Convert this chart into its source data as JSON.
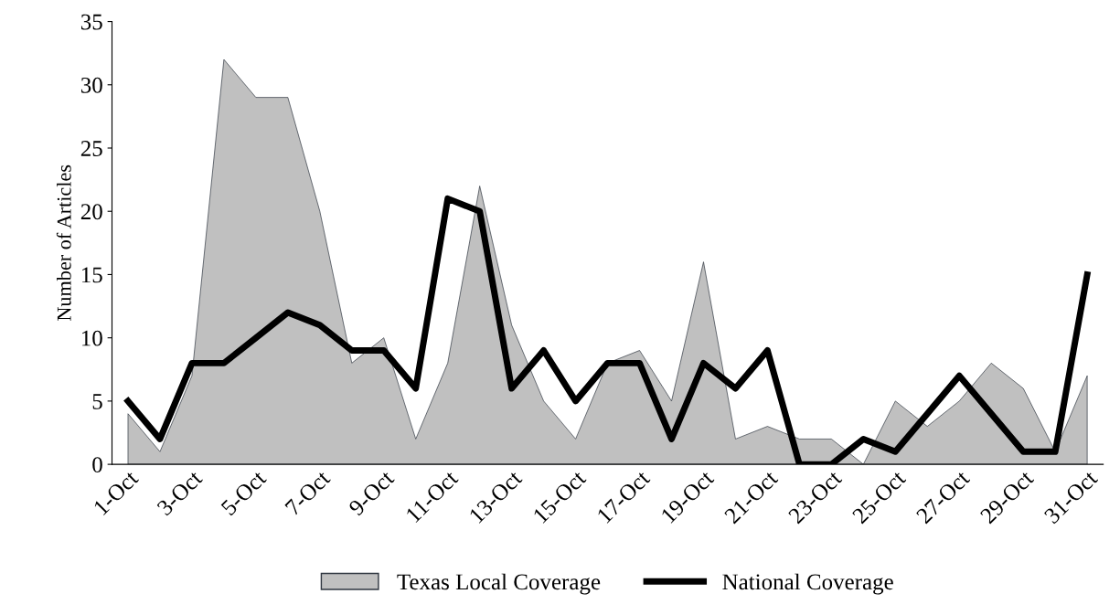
{
  "chart_data": {
    "type": "area",
    "ylabel": "Number of Articles",
    "categories": [
      "1-Oct",
      null,
      "3-Oct",
      null,
      "5-Oct",
      null,
      "7-Oct",
      null,
      "9-Oct",
      null,
      "11-Oct",
      null,
      "13-Oct",
      null,
      "15-Oct",
      null,
      "17-Oct",
      null,
      "19-Oct",
      null,
      "21-Oct",
      null,
      "23-Oct",
      null,
      "25-Oct",
      null,
      "27-Oct",
      null,
      "29-Oct",
      null,
      "31-Oct"
    ],
    "series": [
      {
        "name": "Texas Local Coverage",
        "color": "#c0c0c0",
        "values": [
          4,
          1,
          7,
          32,
          29,
          29,
          20,
          8,
          10,
          2,
          8,
          22,
          11,
          5,
          2,
          8,
          9,
          5,
          16,
          2,
          3,
          2,
          2,
          0,
          5,
          3,
          5,
          8,
          6,
          1,
          7
        ]
      },
      {
        "name": "National Coverage",
        "type": "line",
        "color": "#000000",
        "values": [
          5,
          2,
          8,
          8,
          10,
          12,
          11,
          9,
          9,
          6,
          21,
          20,
          6,
          9,
          5,
          8,
          8,
          2,
          8,
          6,
          9,
          0,
          0,
          2,
          1,
          4,
          7,
          4,
          1,
          1,
          15
        ]
      }
    ],
    "ylim": [
      0,
      35
    ],
    "yticks": [
      0,
      5,
      10,
      15,
      20,
      25,
      30,
      35
    ],
    "grid": false,
    "legend": "bottom"
  }
}
